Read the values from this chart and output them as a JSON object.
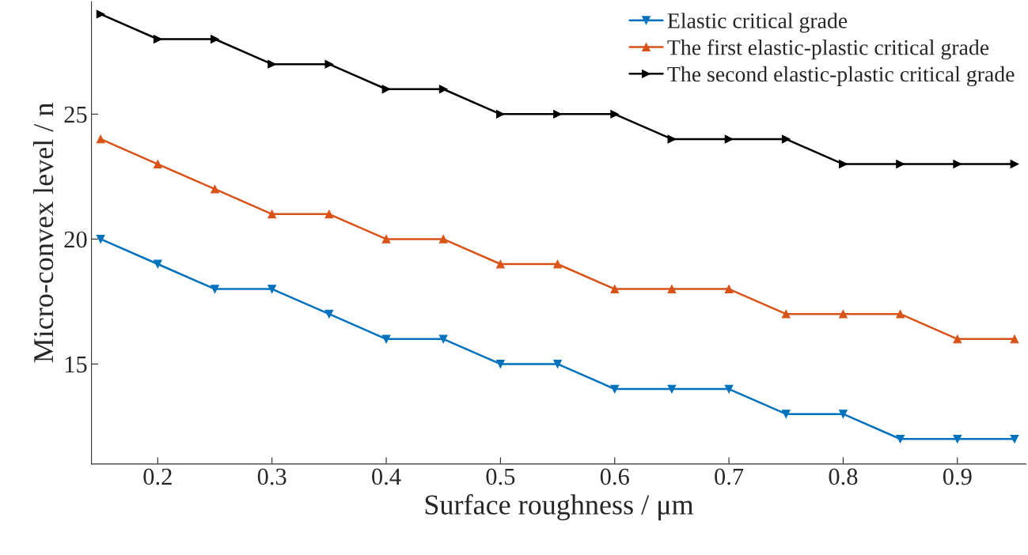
{
  "chart_data": {
    "type": "line",
    "xlabel": "Surface roughness / μm",
    "ylabel": "Micro-convex level / n",
    "x": [
      0.15,
      0.2,
      0.25,
      0.3,
      0.35,
      0.4,
      0.45,
      0.5,
      0.55,
      0.6,
      0.65,
      0.7,
      0.75,
      0.8,
      0.85,
      0.9,
      0.95
    ],
    "series": [
      {
        "name": "Elastic critical grade",
        "color": "#0072bd",
        "marker": "triangle",
        "values": [
          20,
          19,
          18,
          18,
          17,
          16,
          16,
          15,
          15,
          14,
          14,
          14,
          13,
          13,
          12,
          12,
          12
        ]
      },
      {
        "name": "The first elastic-plastic critical grade",
        "color": "#d95319",
        "marker": "triangle",
        "values": [
          24,
          23,
          22,
          21,
          21,
          20,
          20,
          19,
          19,
          18,
          18,
          18,
          17,
          17,
          17,
          16,
          16
        ]
      },
      {
        "name": "The second elastic-plastic critical grade",
        "color": "#000000",
        "marker": "triangle",
        "values": [
          29,
          28,
          28,
          27,
          27,
          26,
          26,
          25,
          25,
          25,
          24,
          24,
          24,
          23,
          23,
          23,
          23
        ]
      }
    ],
    "xlim": [
      0.142,
      0.96
    ],
    "ylim": [
      11,
      29.5
    ],
    "xticks": [
      0.2,
      0.3,
      0.4,
      0.5,
      0.6,
      0.7,
      0.8,
      0.9
    ],
    "yticks": [
      15,
      20,
      25
    ],
    "grid": false,
    "legend": "top right",
    "line_style": "solid"
  }
}
